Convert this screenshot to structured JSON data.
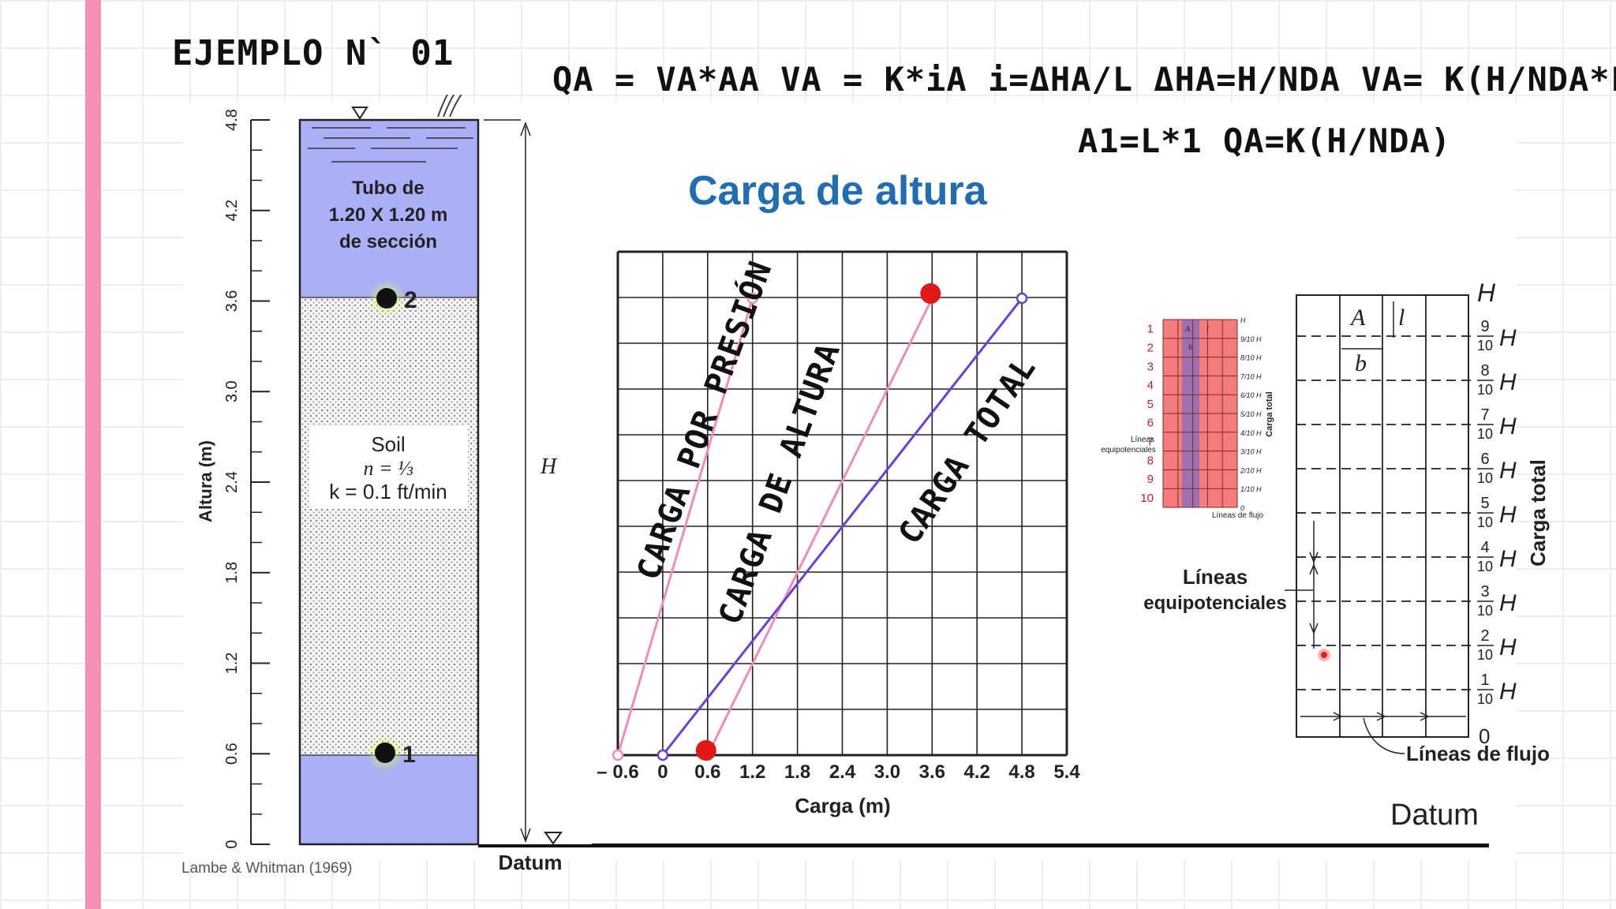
{
  "slide": {
    "example_title": "EJEMPLO N` 01",
    "formula_line_1": "QA = VA*AA   VA = K*iA   i=ΔHA/L   ΔHA=H/NDA    VA= K(H/NDA*L)",
    "formula_line_2": "A1=L*1     QA=K(H/NDA)",
    "citation": "Lambe & Whitman (1969)",
    "datum_main": "Datum"
  },
  "column": {
    "axis_label": "Altura (m)",
    "ticks": [
      "0",
      "0.6",
      "1.2",
      "1.8",
      "2.4",
      "3.0",
      "3.6",
      "4.2",
      "4.8"
    ],
    "tube_line_1": "Tubo de",
    "tube_line_2": "1.20 X 1.20 m",
    "tube_line_3": "de sección",
    "soil_line_1": "Soil",
    "soil_line_2": "n = ⅓",
    "soil_line_3": "k = 0.1 ft/min",
    "point_1": "1",
    "point_2": "2",
    "h_label": "H",
    "datum_label": "Datum",
    "colors": {
      "water": "#aab0f5",
      "soil": "#f4f4f4"
    }
  },
  "chart_title": "Carga de altura",
  "chart_data": {
    "type": "line",
    "title": "Carga de altura",
    "xlabel": "Carga (m)",
    "ylabel": "Altura (m)",
    "xlim": [
      -0.6,
      5.4
    ],
    "ylim": [
      0,
      4.8
    ],
    "x_ticks": [
      "– 0.6",
      "0",
      "0.6",
      "1.2",
      "1.8",
      "2.4",
      "3.0",
      "3.6",
      "4.2",
      "4.8",
      "5.4"
    ],
    "series": [
      {
        "name": "CARGA POR PRESIÓN",
        "color": "#f08cb8",
        "points": [
          [
            -0.6,
            0.6
          ],
          [
            1.2,
            3.6
          ]
        ]
      },
      {
        "name": "CARGA DE ALTURA",
        "color": "#f08cb8",
        "points": [
          [
            0.6,
            0.6
          ],
          [
            3.6,
            3.6
          ]
        ]
      },
      {
        "name": "CARGA TOTAL",
        "color": "#6a3fd8",
        "points": [
          [
            0,
            0.6
          ],
          [
            4.8,
            3.6
          ]
        ]
      }
    ],
    "markers": [
      [
        0.6,
        0.6
      ],
      [
        3.6,
        3.6
      ]
    ],
    "grid": true
  },
  "small_net": {
    "row_numbers": [
      "1",
      "2",
      "3",
      "4",
      "5",
      "6",
      "7",
      "8",
      "9",
      "10"
    ],
    "head_labels": [
      "H",
      "9/10 H",
      "8/10 H",
      "7/10 H",
      "6/10 H",
      "5/10 H",
      "4/10 H",
      "3/10 H",
      "2/10 H",
      "1/10 H",
      "0"
    ],
    "lbl_a": "A",
    "lbl_l": "l",
    "lbl_b": "b",
    "equip_line_1": "Líneas",
    "equip_line_2": "equipotenciales",
    "flow": "Líneas de flujo",
    "side": "Carga total"
  },
  "large_net": {
    "head_top": "H",
    "fractions": [
      "9",
      "8",
      "7",
      "6",
      "5",
      "4",
      "3",
      "2",
      "1"
    ],
    "denominator": "10",
    "zero": "0",
    "lbl_a": "A",
    "lbl_l": "l",
    "lbl_b": "b",
    "equip_line_1": "Líneas",
    "equip_line_2": "equipotenciales",
    "flow": "Líneas de flujo",
    "side": "Carga total"
  }
}
